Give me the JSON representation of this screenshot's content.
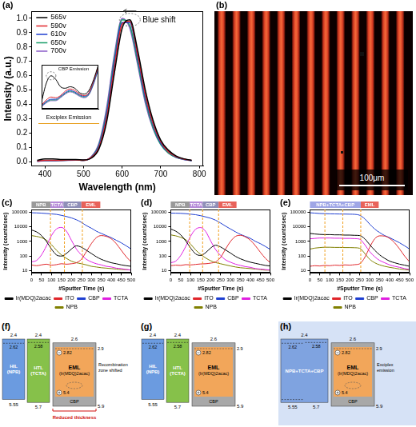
{
  "chart_data": [
    {
      "label": "(a)",
      "type": "line",
      "x_label": "Wavelength (nm)",
      "y_label": "Intensity (a.u.)",
      "x": [
        380,
        400,
        420,
        440,
        460,
        480,
        500,
        520,
        540,
        560,
        580,
        600,
        620,
        640,
        660,
        680,
        700,
        720,
        740,
        760,
        780
      ],
      "series": [
        {
          "name": "565v",
          "color": "#000000",
          "values": [
            0.01,
            0.02,
            0.02,
            0.015,
            0.015,
            0.015,
            0.012,
            0.025,
            0.09,
            0.28,
            0.62,
            0.93,
            0.99,
            0.78,
            0.5,
            0.29,
            0.15,
            0.08,
            0.04,
            0.02,
            0.01
          ]
        },
        {
          "name": "590v",
          "color": "#e0262b",
          "values": [
            0.005,
            0.01,
            0.01,
            0.01,
            0.012,
            0.013,
            0.01,
            0.03,
            0.1,
            0.31,
            0.66,
            0.96,
            0.98,
            0.75,
            0.47,
            0.27,
            0.14,
            0.07,
            0.035,
            0.018,
            0.009
          ]
        },
        {
          "name": "610v",
          "color": "#1f3fd1",
          "values": [
            0.004,
            0.008,
            0.008,
            0.009,
            0.011,
            0.012,
            0.01,
            0.03,
            0.11,
            0.33,
            0.69,
            0.97,
            0.97,
            0.73,
            0.45,
            0.26,
            0.13,
            0.07,
            0.033,
            0.017,
            0.008
          ]
        },
        {
          "name": "650v",
          "color": "#1a9e6a",
          "values": [
            0.004,
            0.008,
            0.008,
            0.009,
            0.011,
            0.012,
            0.01,
            0.032,
            0.12,
            0.35,
            0.72,
            0.99,
            0.95,
            0.7,
            0.43,
            0.24,
            0.12,
            0.06,
            0.03,
            0.016,
            0.008
          ]
        },
        {
          "name": "700v",
          "color": "#8b5cc9",
          "values": [
            0.003,
            0.007,
            0.007,
            0.008,
            0.01,
            0.011,
            0.01,
            0.035,
            0.13,
            0.38,
            0.75,
            1.0,
            0.93,
            0.68,
            0.41,
            0.23,
            0.12,
            0.06,
            0.03,
            0.015,
            0.007
          ]
        }
      ],
      "xlim": [
        365,
        810
      ],
      "xticks": [
        400,
        500,
        600,
        700,
        800
      ],
      "ylim": [
        -0.03,
        1.05
      ],
      "yticks": [
        {
          "value": 0,
          "label": "0.0"
        },
        0.1,
        0.2,
        0.3,
        0.4,
        0.5,
        0.6,
        0.7,
        0.8,
        0.9,
        {
          "value": 1,
          "label": "1.0"
        }
      ],
      "grid": false,
      "legend": "top-left",
      "annotations": [
        "Blue shift"
      ],
      "inset": {
        "type": "line",
        "x": [
          380,
          395,
          410,
          425,
          440,
          455,
          470,
          485,
          500,
          515,
          530,
          545,
          560
        ],
        "series": [
          {
            "color": "#000000",
            "values": [
              0.01,
              0.035,
              0.045,
              0.04,
              0.03,
              0.028,
              0.03,
              0.028,
              0.022,
              0.02,
              0.025,
              0.04,
              0.06
            ]
          },
          {
            "color": "#e0262b",
            "values": [
              0.005,
              0.012,
              0.016,
              0.015,
              0.018,
              0.024,
              0.027,
              0.025,
              0.02,
              0.018,
              0.022,
              0.038,
              0.058
            ]
          },
          {
            "color": "#1f3fd1",
            "values": [
              0.004,
              0.01,
              0.013,
              0.013,
              0.017,
              0.022,
              0.025,
              0.023,
              0.019,
              0.017,
              0.021,
              0.036,
              0.056
            ]
          },
          {
            "color": "#1a9e6a",
            "values": [
              0.004,
              0.009,
              0.012,
              0.012,
              0.016,
              0.021,
              0.024,
              0.022,
              0.018,
              0.016,
              0.02,
              0.035,
              0.055
            ]
          },
          {
            "color": "#8b5cc9",
            "values": [
              0.003,
              0.008,
              0.011,
              0.011,
              0.015,
              0.02,
              0.023,
              0.021,
              0.017,
              0.015,
              0.019,
              0.034,
              0.054
            ]
          }
        ],
        "xlim": [
          380,
          560
        ],
        "ylim": [
          0,
          0.06
        ],
        "tick_labels": false,
        "grid": false,
        "annotations": [
          "CBP Emission",
          "Exciplex Emission"
        ]
      }
    },
    {
      "label": "(c)",
      "type": "line",
      "x_label": "#Sputter Time (s)",
      "y_label": "Intensity (counts/sec)",
      "log": "y",
      "x": [
        0,
        25,
        50,
        75,
        100,
        125,
        150,
        175,
        200,
        225,
        250,
        275,
        300,
        325,
        350,
        375,
        400,
        425,
        450,
        475,
        500
      ],
      "series": [
        {
          "name": "Ir(MDQ)2acac",
          "color": "#000000",
          "values": [
            6000,
            4500,
            2500,
            1000,
            300,
            120,
            100,
            150,
            300,
            500,
            400,
            250,
            150,
            90,
            60,
            45,
            35,
            30,
            25,
            22,
            20
          ]
        },
        {
          "name": "ITO",
          "color": "#e0262b",
          "values": [
            25,
            22,
            25,
            28,
            24,
            26,
            30,
            28,
            30,
            35,
            60,
            200,
            700,
            1800,
            2500,
            2200,
            1500,
            700,
            250,
            90,
            40
          ]
        },
        {
          "name": "CBP",
          "color": "#1f3fd1",
          "values": [
            90000,
            88000,
            85000,
            80000,
            75000,
            70000,
            60000,
            50000,
            40000,
            30000,
            20000,
            12000,
            8000,
            5000,
            3500,
            2500,
            1800,
            1200,
            800,
            500,
            300
          ]
        },
        {
          "name": "TCTA",
          "color": "#e020e0",
          "values": [
            40,
            50,
            120,
            500,
            2500,
            7000,
            9000,
            5000,
            1200,
            300,
            120,
            60,
            40,
            30,
            25,
            20,
            18,
            15,
            14,
            12,
            11
          ]
        },
        {
          "name": "NPB",
          "color": "#808000",
          "values": [
            2500,
            2200,
            1800,
            1200,
            600,
            250,
            120,
            70,
            45,
            35,
            30,
            25,
            20,
            18,
            16,
            15,
            14,
            13,
            12,
            12,
            11
          ]
        }
      ],
      "xlim": [
        0,
        500
      ],
      "xticks": [
        0,
        50,
        100,
        150,
        200,
        250,
        300,
        350,
        400,
        450,
        500
      ],
      "ylim": [
        7,
        150000
      ],
      "yticks": [
        10,
        100,
        1000,
        10000,
        100000
      ],
      "grid": false,
      "legend": "bottom",
      "layers": [
        {
          "name": "NPB",
          "start": 0,
          "end": 95,
          "color": "#9a9a9a"
        },
        {
          "name": "TCTA",
          "start": 95,
          "end": 160,
          "color": "#b58ad8"
        },
        {
          "name": "CBP",
          "start": 160,
          "end": 250,
          "color": "#8f8fb8"
        },
        {
          "name": "EML",
          "start": 250,
          "end": 345,
          "color": "#e8625a"
        }
      ],
      "boundaries": [
        95,
        165,
        255
      ]
    },
    {
      "label": "(d)",
      "type": "line",
      "x_label": "#Sputter Time (s)",
      "y_label": "Intensity (counts/sec)",
      "log": "y",
      "x": [
        0,
        25,
        50,
        75,
        100,
        125,
        150,
        175,
        200,
        225,
        250,
        275,
        300,
        325,
        350,
        375,
        400,
        425,
        450,
        475,
        500
      ],
      "series": [
        {
          "name": "Ir(MDQ)2acac",
          "color": "#000000",
          "values": [
            7000,
            5000,
            2800,
            1100,
            350,
            140,
            110,
            170,
            350,
            550,
            420,
            260,
            160,
            95,
            65,
            48,
            38,
            32,
            27,
            23,
            21
          ]
        },
        {
          "name": "ITO",
          "color": "#e0262b",
          "values": [
            22,
            24,
            23,
            26,
            25,
            27,
            29,
            30,
            33,
            40,
            80,
            300,
            1000,
            2200,
            2600,
            2000,
            1200,
            500,
            180,
            70,
            35
          ]
        },
        {
          "name": "CBP",
          "color": "#1f3fd1",
          "values": [
            85000,
            84000,
            82000,
            78000,
            72000,
            66000,
            57000,
            47000,
            38000,
            28000,
            18000,
            11000,
            7000,
            4500,
            3000,
            2200,
            1600,
            1000,
            700,
            450,
            280
          ]
        },
        {
          "name": "TCTA",
          "color": "#e020e0",
          "values": [
            35,
            45,
            110,
            450,
            2300,
            6800,
            8800,
            4800,
            1100,
            280,
            110,
            55,
            38,
            28,
            23,
            19,
            17,
            14,
            13,
            12,
            11
          ]
        },
        {
          "name": "NPB",
          "color": "#808000",
          "values": [
            2800,
            2400,
            1900,
            1300,
            650,
            260,
            130,
            75,
            48,
            36,
            30,
            25,
            21,
            18,
            16,
            15,
            14,
            13,
            12,
            11,
            11
          ]
        }
      ],
      "xlim": [
        0,
        500
      ],
      "xticks": [
        0,
        50,
        100,
        150,
        200,
        250,
        300,
        350,
        400,
        450,
        500
      ],
      "ylim": [
        7,
        150000
      ],
      "yticks": [
        10,
        100,
        1000,
        10000,
        100000
      ],
      "grid": false,
      "legend": "bottom",
      "layers": [
        {
          "name": "NPB",
          "start": 0,
          "end": 95,
          "color": "#9a9a9a"
        },
        {
          "name": "TCTA",
          "start": 95,
          "end": 160,
          "color": "#b58ad8"
        },
        {
          "name": "CBP",
          "start": 160,
          "end": 240,
          "color": "#8f8fb8"
        },
        {
          "name": "EML",
          "start": 240,
          "end": 330,
          "color": "#e8625a"
        }
      ],
      "boundaries": [
        95,
        160,
        240
      ]
    },
    {
      "label": "(e)",
      "type": "line",
      "x_label": "#Sputter Time (s)",
      "y_label": "Intensity (counts/sec)",
      "log": "y",
      "x": [
        0,
        25,
        50,
        75,
        100,
        125,
        150,
        175,
        200,
        225,
        250,
        275,
        300,
        325,
        350,
        375,
        400,
        425,
        450,
        475,
        500
      ],
      "series": [
        {
          "name": "Ir(MDQ)2acac",
          "color": "#000000",
          "values": [
            3500,
            3200,
            3000,
            2900,
            2900,
            2800,
            2800,
            2700,
            2700,
            2600,
            2500,
            1500,
            600,
            250,
            120,
            70,
            45,
            35,
            28,
            24,
            20
          ]
        },
        {
          "name": "ITO",
          "color": "#e0262b",
          "values": [
            20,
            22,
            21,
            23,
            22,
            24,
            23,
            25,
            24,
            26,
            30,
            80,
            400,
            1500,
            2400,
            2300,
            1600,
            800,
            300,
            100,
            40
          ]
        },
        {
          "name": "CBP",
          "color": "#1f3fd1",
          "values": [
            90000,
            85000,
            80000,
            78000,
            76000,
            75000,
            74000,
            73000,
            72000,
            70000,
            60000,
            35000,
            15000,
            7000,
            4000,
            2500,
            1800,
            1200,
            800,
            500,
            300
          ]
        },
        {
          "name": "TCTA",
          "color": "#e020e0",
          "values": [
            1500,
            1600,
            1700,
            1700,
            1700,
            1650,
            1650,
            1600,
            1600,
            1550,
            1400,
            600,
            200,
            90,
            50,
            35,
            25,
            20,
            17,
            14,
            12
          ]
        },
        {
          "name": "NPB",
          "color": "#808000",
          "values": [
            300,
            350,
            380,
            400,
            400,
            390,
            390,
            380,
            380,
            370,
            340,
            150,
            60,
            35,
            25,
            20,
            17,
            15,
            13,
            12,
            11
          ]
        }
      ],
      "xlim": [
        0,
        500
      ],
      "xticks": [
        0,
        50,
        100,
        150,
        200,
        250,
        300,
        350,
        400,
        450,
        500
      ],
      "ylim": [
        7,
        150000
      ],
      "yticks": [
        10,
        100,
        1000,
        10000,
        100000
      ],
      "grid": false,
      "legend": "bottom",
      "layers": [
        {
          "name": "NPB+TCTA+CBP",
          "start": 0,
          "end": 255,
          "color": "#9fa6e6"
        },
        {
          "name": "EML",
          "start": 255,
          "end": 345,
          "color": "#e8625a"
        }
      ],
      "boundaries": [
        75,
        165,
        255
      ]
    }
  ],
  "image": {
    "label": "(b)",
    "scale_bar": "100μm"
  },
  "diagrams": [
    {
      "label": "(f)",
      "stacks": [
        {
          "name": "HIL (NPB)",
          "top": 2.4,
          "levels": [
            2.62
          ],
          "bottoms": [
            5.55
          ],
          "color": "#6b9be0"
        },
        {
          "name": "HTL (TCTA)",
          "top": 2.4,
          "levels": [
            2.58
          ],
          "bottoms": [
            5.7
          ],
          "color": "#86c14a"
        }
      ],
      "eml": {
        "name": "EML (Ir(MDQ)2acac)",
        "host": "CBP",
        "host_top": 2.6,
        "dopant_top": 2.82,
        "level": 2.9,
        "dopant_bottom": 5.4,
        "host_bottom": 5.9
      },
      "notes": [
        "Recombination zone shifted"
      ],
      "bracket": "Reduced thickness"
    },
    {
      "label": "(g)",
      "stacks": [
        {
          "name": "HIL (NPB)",
          "top": 2.4,
          "levels": [
            2.62
          ],
          "bottoms": [
            5.55
          ],
          "color": "#6b9be0"
        },
        {
          "name": "HTL (TCTA)",
          "top": 2.4,
          "levels": [
            2.58
          ],
          "bottoms": [
            5.7
          ],
          "color": "#86c14a"
        }
      ],
      "eml": {
        "name": "EML (Ir(MDQ)2acac)",
        "host": "CBP",
        "host_top": 2.6,
        "dopant_top": 2.82,
        "level": 2.9,
        "dopant_bottom": 5.4,
        "host_bottom": 5.9
      }
    },
    {
      "label": "(h)",
      "stacks": [
        {
          "name": "NPB+TCTA+CBP",
          "top": 2.4,
          "levels": [
            2.62,
            2.58
          ],
          "bottoms": [
            5.55,
            5.7
          ],
          "color": "#7fa3e0"
        }
      ],
      "eml": {
        "name": "EML (Ir(MDQ)2acac)",
        "host": "CBP",
        "host_top": 2.6,
        "dopant_top": 2.82,
        "level": 2.9,
        "dopant_bottom": 5.4,
        "host_bottom": 5.9
      },
      "notes": [
        "Exciplex emission"
      ]
    }
  ]
}
